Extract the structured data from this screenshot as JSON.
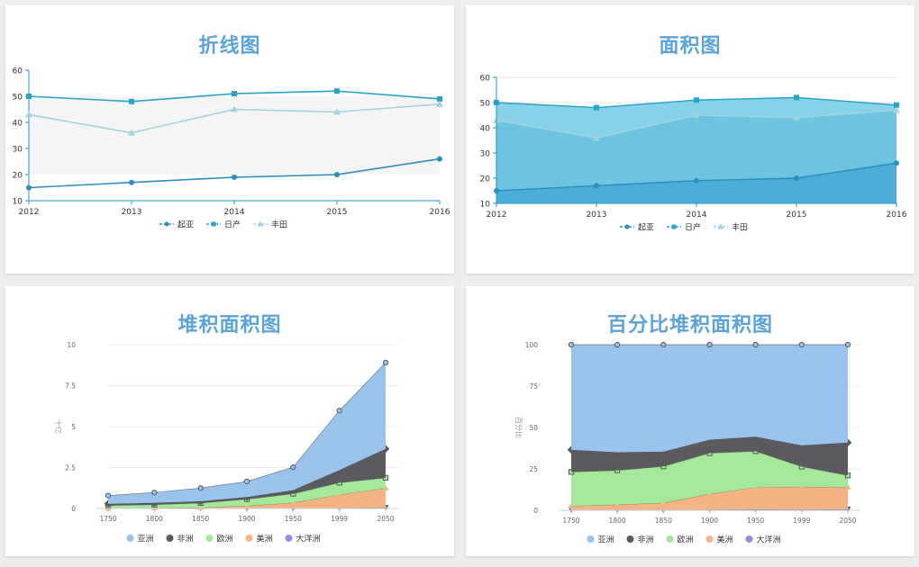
{
  "colors": {
    "title": "#5ba3d9",
    "line_axis": "#2196c4",
    "kia": "#2e8cc0",
    "nissan": "#2aa3c9",
    "toyota": "#9fd3e0",
    "area_top": "#88d2e9",
    "area_mid": "#6cc4e0",
    "area_bottom": "#4aaed8",
    "asia": "#99c3eb",
    "africa": "#5a5a5f",
    "europe": "#a4e89a",
    "americas": "#f4b382",
    "oceania": "#8e90dc"
  },
  "chart_data": [
    {
      "type": "line",
      "title": "折线图",
      "categories": [
        "2012",
        "2013",
        "2014",
        "2015",
        "2016"
      ],
      "ylim": [
        10,
        60
      ],
      "yticks": [
        "10",
        "20",
        "30",
        "40",
        "50",
        "60"
      ],
      "series": [
        {
          "name": "起亚",
          "values": [
            15,
            17,
            19,
            20,
            26
          ],
          "marker": "circle",
          "color": "#2e8cc0"
        },
        {
          "name": "日产",
          "values": [
            50,
            48,
            51,
            52,
            49
          ],
          "marker": "square",
          "color": "#2aa3c9"
        },
        {
          "name": "丰田",
          "values": [
            43,
            36,
            45,
            44,
            47
          ],
          "marker": "triangle",
          "color": "#9fd3e0"
        }
      ],
      "legend": "bottom",
      "grid": "bands"
    },
    {
      "type": "area",
      "title": "面积图",
      "categories": [
        "2012",
        "2013",
        "2014",
        "2015",
        "2016"
      ],
      "ylim": [
        10,
        60
      ],
      "yticks": [
        "10",
        "20",
        "30",
        "40",
        "50",
        "60"
      ],
      "series": [
        {
          "name": "起亚",
          "values": [
            15,
            17,
            19,
            20,
            26
          ],
          "marker": "circle",
          "color": "#2e8cc0"
        },
        {
          "name": "日产",
          "values": [
            50,
            48,
            51,
            52,
            49
          ],
          "marker": "square",
          "color": "#2aa3c9"
        },
        {
          "name": "丰田",
          "values": [
            43,
            36,
            45,
            44,
            47
          ],
          "marker": "triangle",
          "color": "#9fd3e0"
        }
      ],
      "legend": "bottom"
    },
    {
      "type": "area",
      "stacked": true,
      "title": "堆积面积图",
      "categories": [
        "1750",
        "1800",
        "1850",
        "1900",
        "1950",
        "1999",
        "2050"
      ],
      "ylim": [
        0,
        10
      ],
      "yticks": [
        "0",
        "2.5",
        "5",
        "7.5",
        "10"
      ],
      "ylabel": "十亿",
      "series": [
        {
          "name": "亚洲",
          "values": [
            0.502,
            0.635,
            0.809,
            0.947,
            1.402,
            3.634,
            5.268
          ],
          "color": "#99c3eb"
        },
        {
          "name": "非洲",
          "values": [
            0.106,
            0.107,
            0.111,
            0.133,
            0.221,
            0.767,
            1.766
          ],
          "color": "#5a5a5f"
        },
        {
          "name": "欧洲",
          "values": [
            0.163,
            0.203,
            0.276,
            0.408,
            0.547,
            0.729,
            0.628
          ],
          "color": "#a4e89a"
        },
        {
          "name": "美洲",
          "values": [
            0.018,
            0.031,
            0.054,
            0.156,
            0.339,
            0.818,
            1.201
          ],
          "color": "#f4b382"
        },
        {
          "name": "大洋洲",
          "values": [
            0.002,
            0.002,
            0.002,
            0.006,
            0.013,
            0.03,
            0.046
          ],
          "color": "#8e90dc"
        }
      ],
      "legend": "bottom"
    },
    {
      "type": "area",
      "stacked": "percent",
      "title": "百分比堆积面积图",
      "categories": [
        "1750",
        "1800",
        "1850",
        "1900",
        "1950",
        "1999",
        "2050"
      ],
      "ylim": [
        0,
        100
      ],
      "yticks": [
        "0",
        "25",
        "50",
        "75",
        "100"
      ],
      "ylabel": "百分比",
      "series": [
        {
          "name": "亚洲",
          "values": [
            0.502,
            0.635,
            0.809,
            0.947,
            1.402,
            3.634,
            5.268
          ],
          "color": "#99c3eb"
        },
        {
          "name": "非洲",
          "values": [
            0.106,
            0.107,
            0.111,
            0.133,
            0.221,
            0.767,
            1.766
          ],
          "color": "#5a5a5f"
        },
        {
          "name": "欧洲",
          "values": [
            0.163,
            0.203,
            0.276,
            0.408,
            0.547,
            0.729,
            0.628
          ],
          "color": "#a4e89a"
        },
        {
          "name": "美洲",
          "values": [
            0.018,
            0.031,
            0.054,
            0.156,
            0.339,
            0.818,
            1.201
          ],
          "color": "#f4b382"
        },
        {
          "name": "大洋洲",
          "values": [
            0.002,
            0.002,
            0.002,
            0.006,
            0.013,
            0.03,
            0.046
          ],
          "color": "#8e90dc"
        }
      ],
      "legend": "bottom"
    }
  ]
}
